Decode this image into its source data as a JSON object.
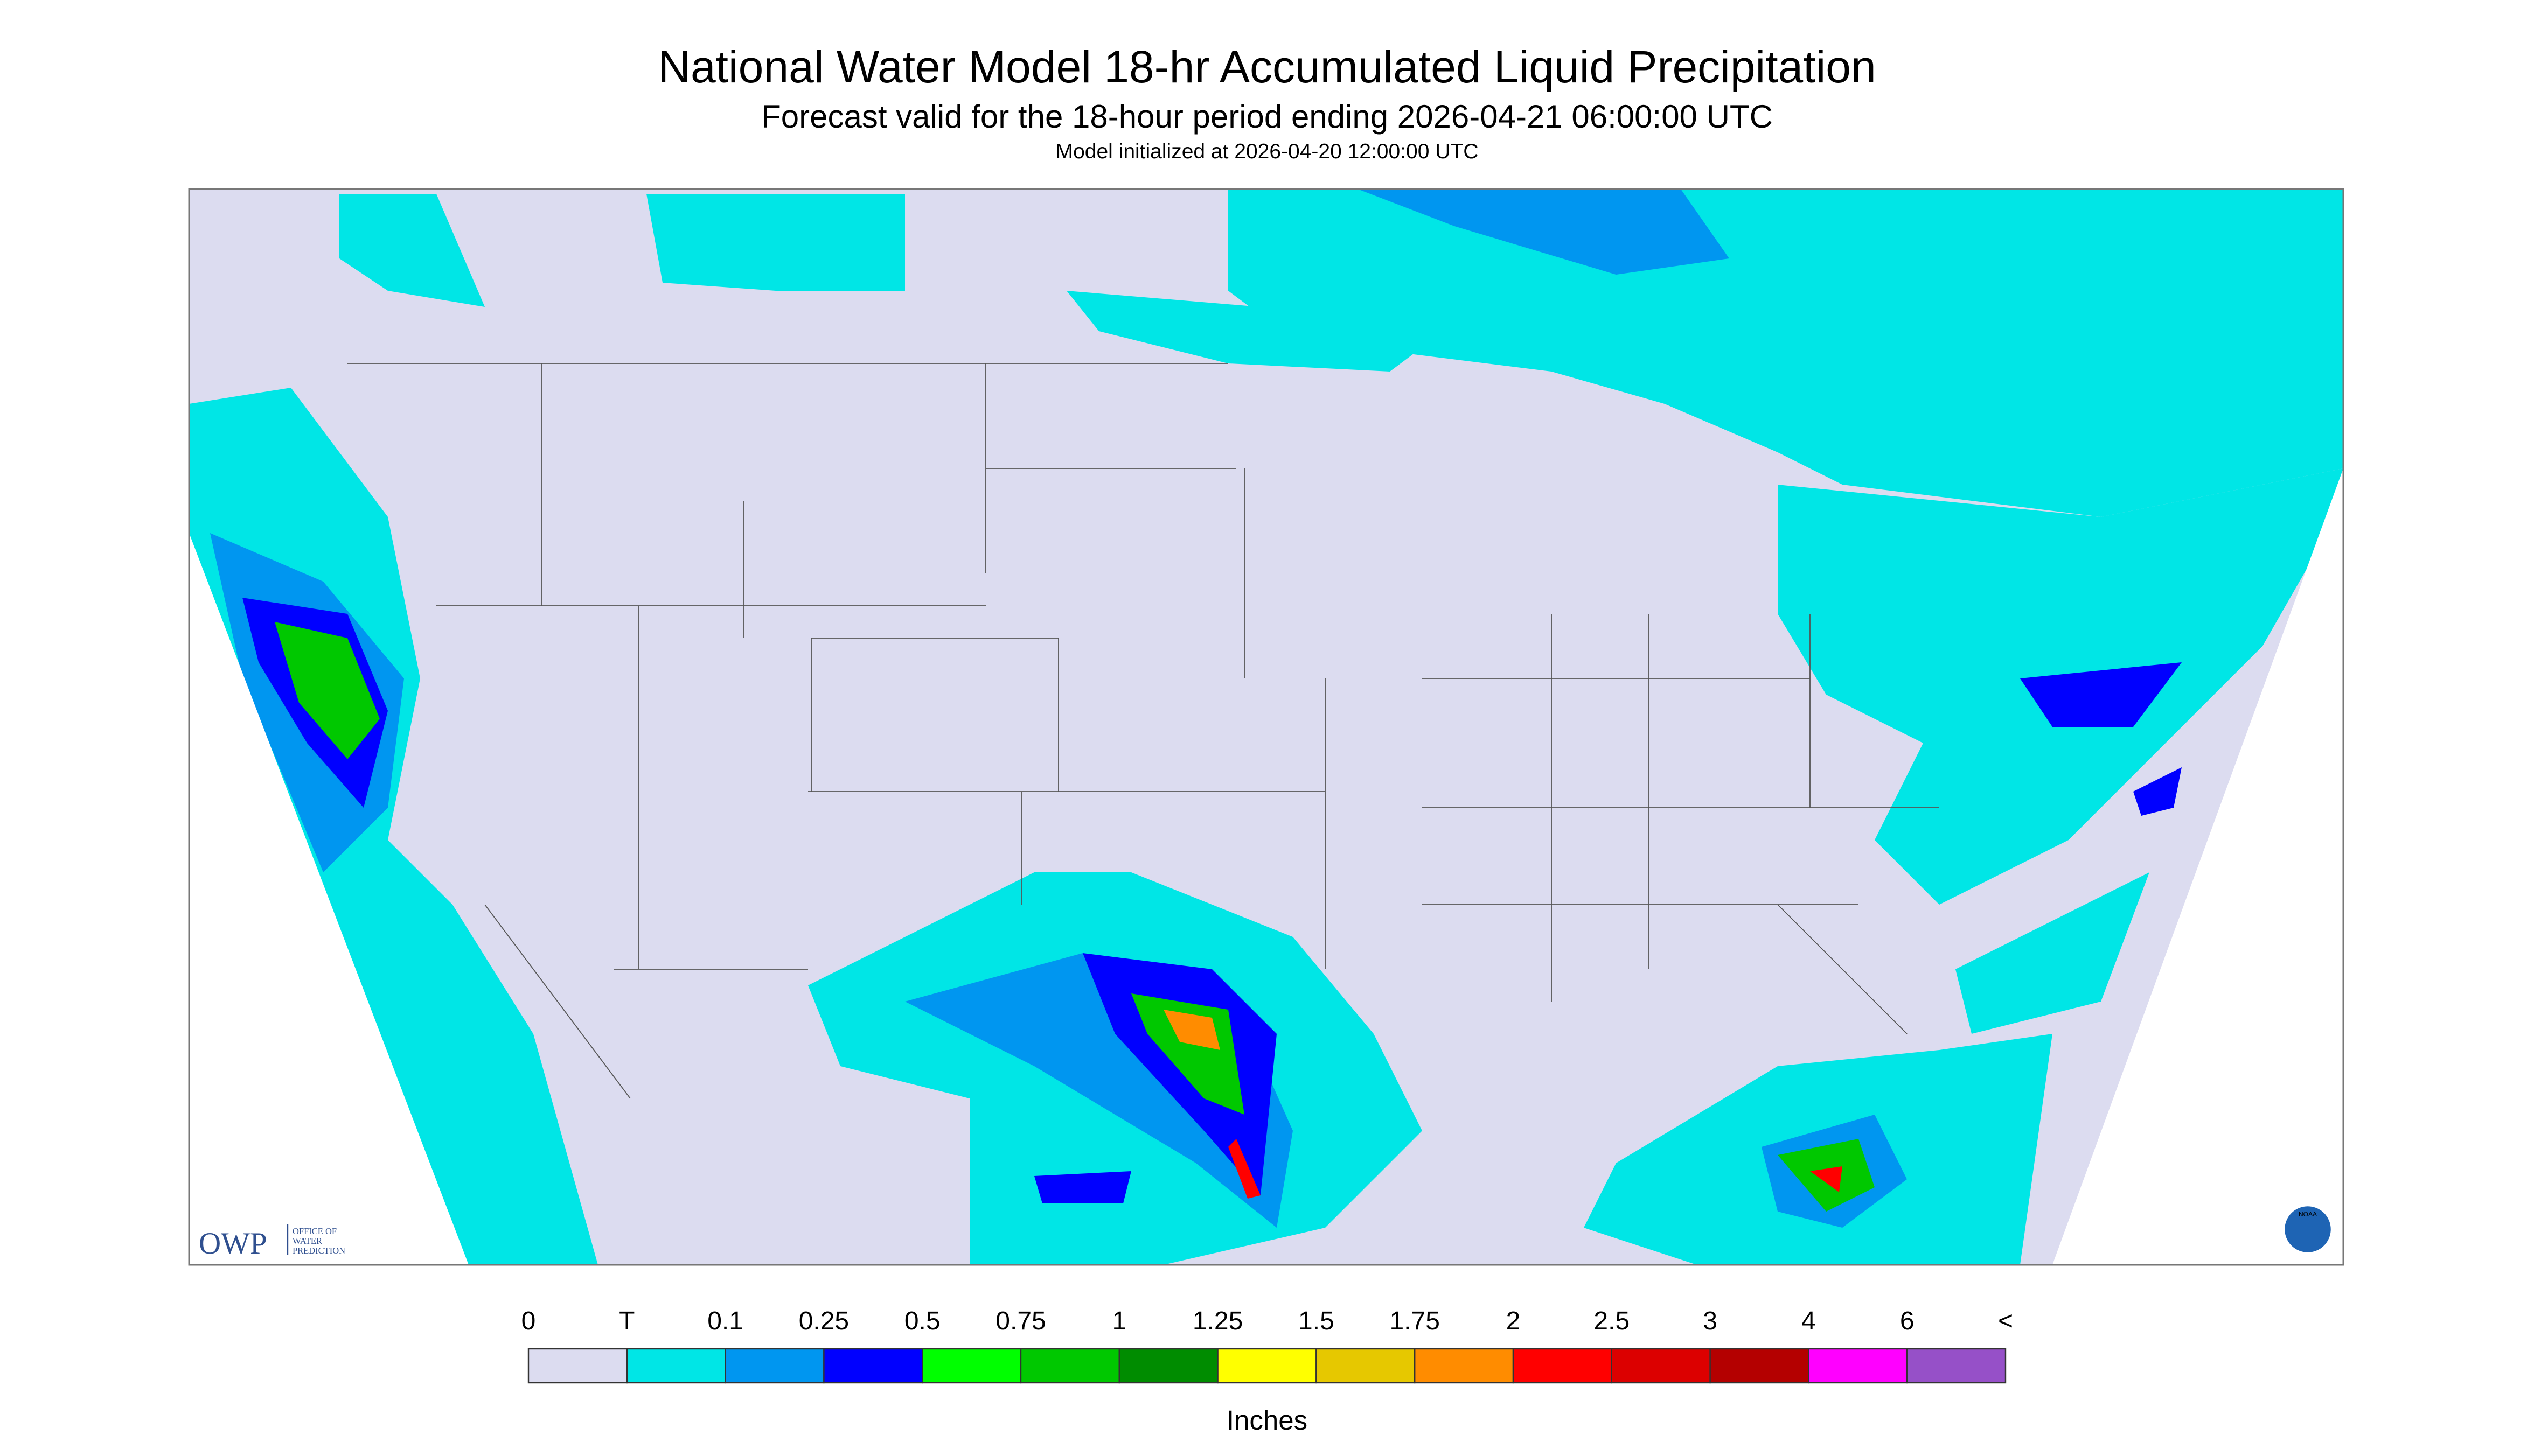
{
  "header": {
    "title": "National Water Model 18-hr Accumulated Liquid Precipitation",
    "subtitle": "Forecast valid for the 18-hour period ending 2026-04-21 06:00:00 UTC",
    "note": "Model initialized at 2026-04-20 12:00:00 UTC"
  },
  "logos": {
    "owp": "OWP",
    "owp_text": [
      "OFFICE OF",
      "WATER",
      "PREDICTION"
    ],
    "noaa": "NOAA"
  },
  "legend": {
    "labels": [
      "0",
      "T",
      "0.1",
      "0.25",
      "0.5",
      "0.75",
      "1",
      "1.25",
      "1.5",
      "1.75",
      "2",
      "2.5",
      "3",
      "4",
      "6",
      "<"
    ],
    "colors": [
      "#dcdcf0",
      "#00e6e6",
      "#0096f0",
      "#0000ff",
      "#00ff00",
      "#00c800",
      "#008c00",
      "#ffff00",
      "#e6c800",
      "#ff8c00",
      "#ff0000",
      "#dc0000",
      "#b40000",
      "#ff00ff",
      "#9650c8"
    ],
    "unit": "Inches"
  }
}
